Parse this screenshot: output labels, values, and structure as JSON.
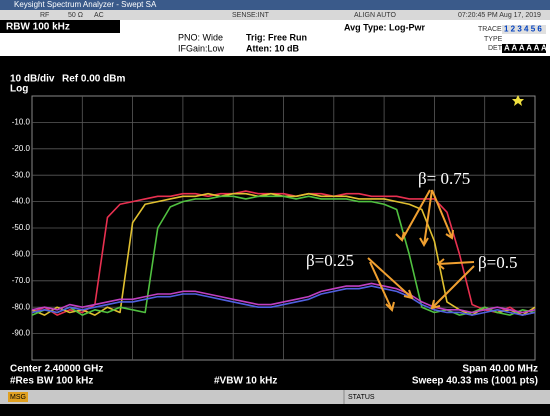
{
  "screen": {
    "title_bar": "Keysight Spectrum Analyzer - Swept SA",
    "status_items": [
      "RF",
      "50 Ω",
      "AC",
      "SENSE:INT",
      "ALIGN AUTO",
      "07:20:45 PM Aug 17, 2019"
    ],
    "rbw": "RBW 100 kHz",
    "pno": "PNO: Wide",
    "ifgain": "IFGain:Low",
    "trig": "Trig: Free Run",
    "atten": "Atten: 10 dB",
    "avg_type": "Avg Type: Log-Pwr",
    "trace_label": "TRACE",
    "trace_numbers": "1 2 3 4 5 6",
    "type_label": "TYPE",
    "det_label": "DET",
    "det_values": "A A A A A A",
    "scale": "10 dB/div",
    "ref": "Ref 0.00 dBm",
    "log": "Log",
    "center": "Center 2.40000 GHz",
    "span": "Span 40.00 MHz",
    "res_bw": "#Res BW 100 kHz",
    "vbw": "#VBW 10 kHz",
    "sweep": "Sweep  40.33 ms (1001 pts)",
    "msg": "MSG",
    "status": "STATUS"
  },
  "chart_data": {
    "type": "line",
    "annotations": [
      "β= 0.75",
      "β=0.25",
      "β=0.5"
    ],
    "x": [
      2380,
      2381,
      2382,
      2383,
      2384,
      2385,
      2386,
      2387,
      2388,
      2389,
      2390,
      2391,
      2392,
      2393,
      2394,
      2395,
      2396,
      2397,
      2398,
      2399,
      2400,
      2401,
      2402,
      2403,
      2404,
      2405,
      2406,
      2407,
      2408,
      2409,
      2410,
      2411,
      2412,
      2413,
      2414,
      2415,
      2416,
      2417,
      2418,
      2419,
      2420
    ],
    "xlim": [
      2380,
      2420
    ],
    "ylim": [
      -100,
      0
    ],
    "yticks": [
      {
        "value": -10,
        "label": "-10.0"
      },
      {
        "value": -20,
        "label": "-20.0"
      },
      {
        "value": -30,
        "label": "-30.0"
      },
      {
        "value": -40,
        "label": "-40.0"
      },
      {
        "value": -50,
        "label": "-50.0"
      },
      {
        "value": -60,
        "label": "-60.0"
      },
      {
        "value": -70,
        "label": "-70.0"
      },
      {
        "value": -80,
        "label": "-80.0"
      },
      {
        "value": -90,
        "label": "-90.0"
      }
    ],
    "grid": true,
    "series": [
      {
        "color": "#e83050",
        "values": [
          -82,
          -80,
          -83,
          -81,
          -82,
          -79,
          -46,
          -41,
          -40,
          -39,
          -38,
          -38,
          -37,
          -37,
          -38,
          -37,
          -37,
          -36,
          -37,
          -37,
          -37,
          -38,
          -37,
          -37,
          -38,
          -37,
          -37,
          -38,
          -38,
          -38,
          -39,
          -39,
          -39,
          -44,
          -60,
          -79,
          -81,
          -82,
          -80,
          -83,
          -82
        ]
      },
      {
        "color": "#e0c030",
        "values": [
          -81,
          -83,
          -80,
          -82,
          -81,
          -83,
          -80,
          -82,
          -48,
          -41,
          -40,
          -39,
          -38,
          -38,
          -37,
          -38,
          -37,
          -37,
          -38,
          -37,
          -38,
          -38,
          -37,
          -38,
          -38,
          -38,
          -39,
          -39,
          -39,
          -40,
          -41,
          -43,
          -55,
          -78,
          -81,
          -83,
          -80,
          -82,
          -81,
          -83,
          -80
        ]
      },
      {
        "color": "#50c040",
        "values": [
          -83,
          -81,
          -82,
          -80,
          -83,
          -81,
          -82,
          -80,
          -81,
          -82,
          -50,
          -42,
          -40,
          -39,
          -39,
          -38,
          -38,
          -39,
          -38,
          -38,
          -38,
          -39,
          -38,
          -39,
          -39,
          -39,
          -40,
          -40,
          -41,
          -43,
          -60,
          -80,
          -82,
          -81,
          -83,
          -82,
          -80,
          -82,
          -83,
          -81,
          -82
        ]
      },
      {
        "color": "#5060e0",
        "values": [
          -82,
          -81,
          -82,
          -80,
          -81,
          -80,
          -79,
          -78,
          -78,
          -77,
          -76,
          -76,
          -75,
          -75,
          -76,
          -77,
          -78,
          -79,
          -80,
          -80,
          -79,
          -78,
          -77,
          -75,
          -74,
          -73,
          -73,
          -72,
          -73,
          -74,
          -76,
          -79,
          -81,
          -82,
          -82,
          -83,
          -82,
          -81,
          -82,
          -83,
          -82
        ]
      },
      {
        "color": "#c040c0",
        "values": [
          -81,
          -80,
          -81,
          -79,
          -80,
          -79,
          -78,
          -77,
          -77,
          -76,
          -75,
          -75,
          -74,
          -74,
          -75,
          -76,
          -77,
          -78,
          -79,
          -79,
          -78,
          -77,
          -76,
          -74,
          -73,
          -72,
          -72,
          -71,
          -72,
          -73,
          -75,
          -78,
          -80,
          -81,
          -81,
          -82,
          -81,
          -80,
          -81,
          -82,
          -81
        ]
      }
    ]
  }
}
